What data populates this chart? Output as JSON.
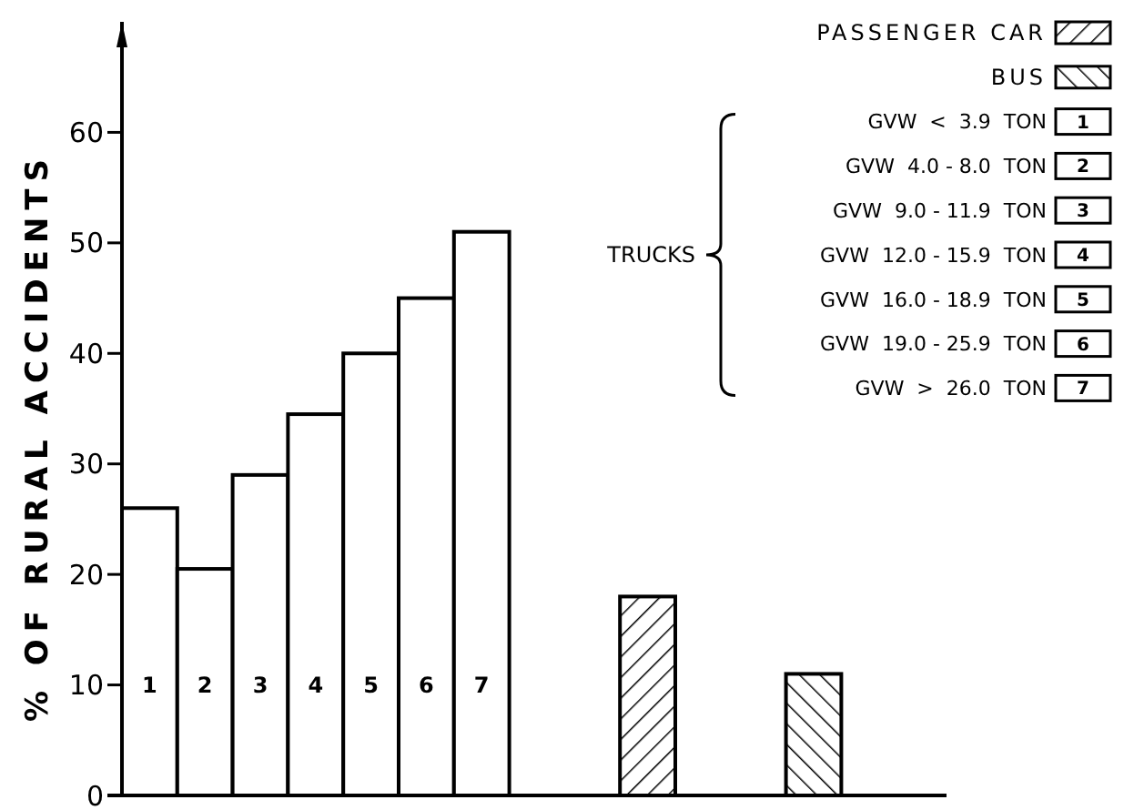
{
  "chart_data": {
    "type": "bar",
    "ylabel": "% OF RURAL ACCIDENTS",
    "categories": [
      "1",
      "2",
      "3",
      "4",
      "5",
      "6",
      "7",
      null,
      null,
      null,
      null,
      null,
      null,
      null,
      null
    ],
    "series": [
      {
        "color": "#000000",
        "values": [
          26,
          20.5,
          29,
          34.5,
          40,
          45,
          51,
          null,
          null,
          null,
          null,
          null,
          null,
          null,
          null
        ]
      },
      {
        "name": "PASSENGER CAR",
        "color": "#000000",
        "values": [
          null,
          null,
          null,
          null,
          null,
          null,
          null,
          null,
          null,
          18,
          null,
          null,
          null,
          null,
          null
        ]
      },
      {
        "name": "BUS",
        "color": "#000000",
        "values": [
          null,
          null,
          null,
          null,
          null,
          null,
          null,
          null,
          null,
          null,
          null,
          null,
          11,
          null,
          null
        ]
      }
    ],
    "ylim": [
      0,
      70
    ],
    "yticks": [
      0,
      10,
      20,
      30,
      40,
      50,
      60
    ],
    "grid": false,
    "legend": "top right",
    "annotations": [
      "TRUCKS",
      "GVW  <  3.9  TON",
      "GVW  4.0 - 8.0  TON",
      "GVW  9.0 - 11.9  TON",
      "GVW  12.0 - 15.9  TON",
      "GVW  16.0 - 18.9  TON",
      "GVW  19.0 - 25.9  TON",
      "GVW  >  26.0  TON"
    ]
  }
}
